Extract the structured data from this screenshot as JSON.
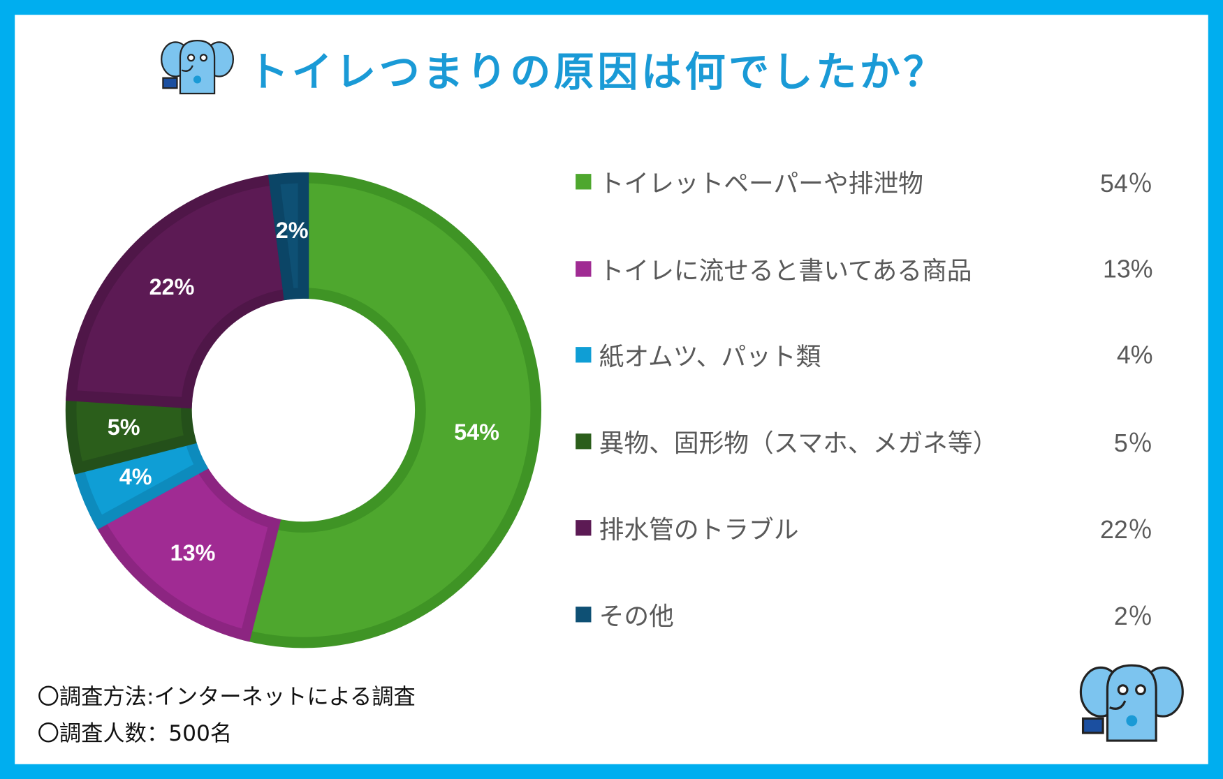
{
  "title": "トイレつまりの原因は何でしたか？",
  "chart_data": {
    "type": "pie",
    "variant": "donut",
    "title": "トイレつまりの原因は何でしたか？",
    "categories": [
      "トイレットペーパーや排泄物",
      "トイレに流せると書いてある商品",
      "紙オムツ、パット類",
      "異物、固形物（スマホ、メガネ等）",
      "排水管のトラブル",
      "その他"
    ],
    "values": [
      54,
      13,
      4,
      5,
      22,
      2
    ],
    "value_labels": [
      "54%",
      "13%",
      "4%",
      "5%",
      "22%",
      "2%"
    ],
    "legend_values": [
      "54％",
      "13%",
      "4%",
      "5％",
      "22％",
      "2％"
    ],
    "colors": [
      "#4ea72e",
      "#a02b93",
      "#0f9ed5",
      "#2b5e1b",
      "#5c1a54",
      "#0e5074"
    ],
    "stroke_colors": [
      "#3f9425",
      "#8c2581",
      "#0d8bbd",
      "#24501a",
      "#4f1648",
      "#0b4566"
    ],
    "legend_position": "right"
  },
  "footnotes": [
    "〇調査方法:インターネットによる調査",
    "〇調査人数：500名"
  ]
}
